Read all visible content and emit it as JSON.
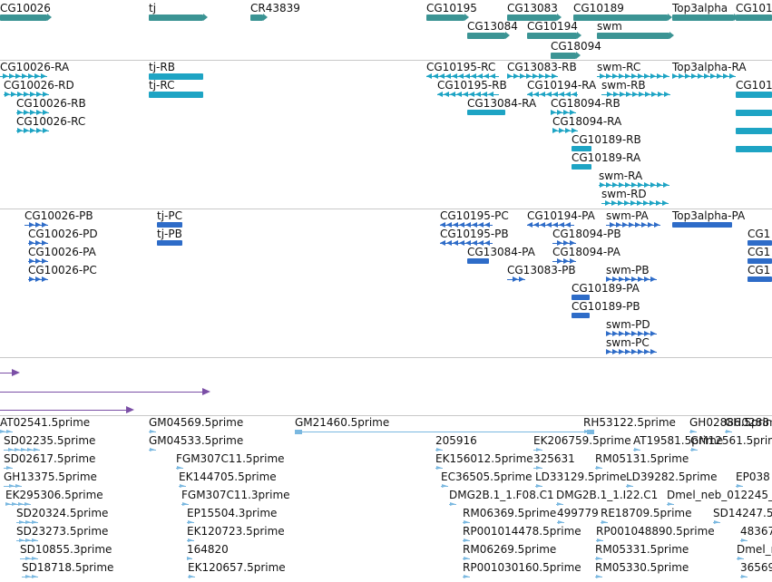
{
  "browser": {
    "colors": {
      "gene": "#3b9494",
      "rna_flybase": "#1ea4c4",
      "rna_refseq": "#2e6cc8",
      "alignment": "#7b4fa6",
      "est": "#7ab8e0",
      "divider": "#c8c8c8"
    },
    "tracks": [
      {
        "id": "genes",
        "color": "#3b9494",
        "features": [
          {
            "label": "CG10026",
            "strand": "+"
          },
          {
            "label": "tj",
            "strand": "+"
          },
          {
            "label": "CR43839",
            "strand": "+"
          },
          {
            "label": "CG10195",
            "strand": "+"
          },
          {
            "label": "CG13083",
            "strand": "+"
          },
          {
            "label": "CG13084",
            "strand": "+"
          },
          {
            "label": "CG10194",
            "strand": "+"
          },
          {
            "label": "CG10189",
            "strand": "+"
          },
          {
            "label": "swm",
            "strand": "+"
          },
          {
            "label": "CG18094",
            "strand": "+"
          },
          {
            "label": "Top3alpha",
            "strand": "+"
          },
          {
            "label": "CG101",
            "strand": "+"
          }
        ]
      },
      {
        "id": "flybase-transcripts",
        "color": "#1ea4c4",
        "features": [
          {
            "label": "CG10026-RA",
            "strand": "+"
          },
          {
            "label": "CG10026-RD",
            "strand": "+"
          },
          {
            "label": "CG10026-RB",
            "strand": "+"
          },
          {
            "label": "CG10026-RC",
            "strand": "+"
          },
          {
            "label": "tj-RB",
            "strand": "+"
          },
          {
            "label": "tj-RC",
            "strand": "+"
          },
          {
            "label": "CG10195-RC",
            "strand": "-"
          },
          {
            "label": "CG10195-RB",
            "strand": "-"
          },
          {
            "label": "CG13083-RB",
            "strand": "+"
          },
          {
            "label": "CG10194-RA",
            "strand": "-"
          },
          {
            "label": "CG13084-RA",
            "strand": "+"
          },
          {
            "label": "CG18094-RB",
            "strand": "+"
          },
          {
            "label": "CG18094-RA",
            "strand": "+"
          },
          {
            "label": "CG10189-RB",
            "strand": "+"
          },
          {
            "label": "CG10189-RA",
            "strand": "+"
          },
          {
            "label": "swm-RC",
            "strand": "+"
          },
          {
            "label": "swm-RB",
            "strand": "+"
          },
          {
            "label": "swm-RA",
            "strand": "+"
          },
          {
            "label": "swm-RD",
            "strand": "+"
          },
          {
            "label": "Top3alpha-RA",
            "strand": "+"
          },
          {
            "label": "CG101",
            "strand": "+"
          },
          {
            "label": "",
            "strand": "+"
          },
          {
            "label": "",
            "strand": "+"
          },
          {
            "label": "",
            "strand": "+"
          }
        ]
      },
      {
        "id": "refseq-transcripts",
        "color": "#2e6cc8",
        "features": [
          {
            "label": "CG10026-PB",
            "strand": "+"
          },
          {
            "label": "CG10026-PD",
            "strand": "+"
          },
          {
            "label": "CG10026-PA",
            "strand": "+"
          },
          {
            "label": "CG10026-PC",
            "strand": "+"
          },
          {
            "label": "tj-PC",
            "strand": "+"
          },
          {
            "label": "tj-PB",
            "strand": "+"
          },
          {
            "label": "CG10195-PC",
            "strand": "-"
          },
          {
            "label": "CG10195-PB",
            "strand": "-"
          },
          {
            "label": "CG10194-PA",
            "strand": "-"
          },
          {
            "label": "CG13084-PA",
            "strand": "+"
          },
          {
            "label": "CG18094-PB",
            "strand": "+"
          },
          {
            "label": "CG18094-PA",
            "strand": "+"
          },
          {
            "label": "CG13083-PB",
            "strand": "+"
          },
          {
            "label": "CG10189-PA",
            "strand": "+"
          },
          {
            "label": "CG10189-PB",
            "strand": "+"
          },
          {
            "label": "swm-PA",
            "strand": "+"
          },
          {
            "label": "swm-PB",
            "strand": "+"
          },
          {
            "label": "swm-PD",
            "strand": "+"
          },
          {
            "label": "swm-PC",
            "strand": "+"
          },
          {
            "label": "Top3alpha-PA",
            "strand": "+"
          },
          {
            "label": "CG1",
            "strand": "+"
          },
          {
            "label": "CG1",
            "strand": "+"
          },
          {
            "label": "CG1",
            "strand": "+"
          }
        ]
      },
      {
        "id": "alignments",
        "color": "#7b4fa6",
        "features": [
          {
            "label": "",
            "strand": "+"
          },
          {
            "label": "",
            "strand": "+"
          },
          {
            "label": "",
            "strand": "+"
          }
        ]
      },
      {
        "id": "est",
        "color": "#7ab8e0",
        "features": [
          {
            "label": "AT02541.5prime",
            "strand": "+"
          },
          {
            "label": "SD02235.5prime",
            "strand": "+"
          },
          {
            "label": "SD02617.5prime",
            "strand": "+"
          },
          {
            "label": "GH13375.5prime",
            "strand": "+"
          },
          {
            "label": "EK295306.5prime",
            "strand": "+"
          },
          {
            "label": "SD20324.5prime",
            "strand": "+"
          },
          {
            "label": "SD23273.5prime",
            "strand": "+"
          },
          {
            "label": "SD10855.3prime",
            "strand": "+"
          },
          {
            "label": "SD18718.5prime",
            "strand": "+"
          },
          {
            "label": "GM04569.5prime",
            "strand": "+"
          },
          {
            "label": "GM04533.5prime",
            "strand": "+"
          },
          {
            "label": "FGM307C11.5prime",
            "strand": "+"
          },
          {
            "label": "EK144705.5prime",
            "strand": "+"
          },
          {
            "label": "FGM307C11.3prime",
            "strand": "+"
          },
          {
            "label": "EP15504.3prime",
            "strand": "+"
          },
          {
            "label": "EK120723.5prime",
            "strand": "+"
          },
          {
            "label": "164820",
            "strand": "+"
          },
          {
            "label": "EK120657.5prime",
            "strand": "+"
          },
          {
            "label": "GM21460.5prime",
            "strand": "+"
          },
          {
            "label": "205916",
            "strand": "+"
          },
          {
            "label": "EK156012.5prime",
            "strand": "+"
          },
          {
            "label": "EC36505.5prime",
            "strand": "+"
          },
          {
            "label": "DMG2B.1_1.F08.C1",
            "strand": "+"
          },
          {
            "label": "RM06369.5prime",
            "strand": "+"
          },
          {
            "label": "RP001014478.5prime",
            "strand": "+"
          },
          {
            "label": "RM06269.5prime",
            "strand": "+"
          },
          {
            "label": "RP001030160.5prime",
            "strand": "+"
          },
          {
            "label": "EK206759.5prime",
            "strand": "+"
          },
          {
            "label": "325631",
            "strand": "+"
          },
          {
            "label": "LD33129.5prime",
            "strand": "+"
          },
          {
            "label": "DMG2B.1_1.I22.C1",
            "strand": "+"
          },
          {
            "label": "499779",
            "strand": "+"
          },
          {
            "label": "RH53122.5prime",
            "strand": "+"
          },
          {
            "label": "AT19581.5prime",
            "strand": "+"
          },
          {
            "label": "RM05131.5prime",
            "strand": "+"
          },
          {
            "label": "LD39282.5prime",
            "strand": "+"
          },
          {
            "label": "RE18709.5prime",
            "strand": "+"
          },
          {
            "label": "RP001048890.5prime",
            "strand": "+"
          },
          {
            "label": "RM05331.5prime",
            "strand": "+"
          },
          {
            "label": "RM05330.5prime",
            "strand": "+"
          },
          {
            "label": "GH02886.5prime",
            "strand": "+"
          },
          {
            "label": "GM12561.5prime",
            "strand": "+"
          },
          {
            "label": "GH0288",
            "strand": "+"
          },
          {
            "label": "Dmel_neb_012245_",
            "strand": "+"
          },
          {
            "label": "SD14247.5",
            "strand": "+"
          },
          {
            "label": "EP038",
            "strand": "+"
          },
          {
            "label": "48367",
            "strand": "+"
          },
          {
            "label": "Dmel_n",
            "strand": "+"
          },
          {
            "label": "36569",
            "strand": "+"
          }
        ]
      }
    ]
  }
}
